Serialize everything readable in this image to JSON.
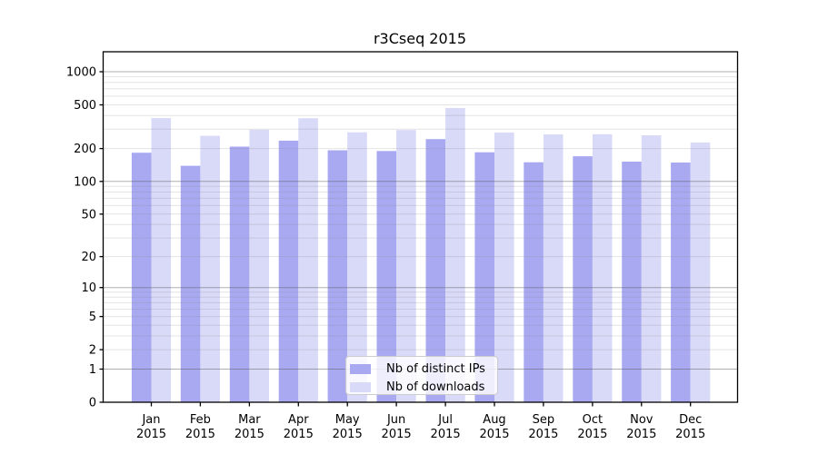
{
  "chart_data": {
    "type": "bar",
    "title": "r3Cseq 2015",
    "categories": [
      "Jan 2015",
      "Feb 2015",
      "Mar 2015",
      "Apr 2015",
      "May 2015",
      "Jun 2015",
      "Jul 2015",
      "Aug 2015",
      "Sep 2015",
      "Oct 2015",
      "Nov 2015",
      "Dec 2015"
    ],
    "series": [
      {
        "name": "Nb of distinct IPs",
        "color": "#a9a9f2",
        "values": [
          183,
          139,
          208,
          236,
          193,
          190,
          244,
          185,
          150,
          170,
          152,
          149
        ]
      },
      {
        "name": "Nb of downloads",
        "color": "#d9d9f8",
        "values": [
          380,
          261,
          297,
          378,
          281,
          295,
          468,
          280,
          269,
          270,
          264,
          227
        ]
      }
    ],
    "y_ticks": [
      0,
      1,
      2,
      5,
      10,
      20,
      50,
      100,
      200,
      500,
      1000
    ],
    "scale": "log10(v+1)",
    "ylim": [
      0,
      1520
    ],
    "xlabel": "",
    "ylabel": "",
    "grid": "horizontal major+minor, drawn over bars",
    "legend_position": "lower-center-inside"
  }
}
